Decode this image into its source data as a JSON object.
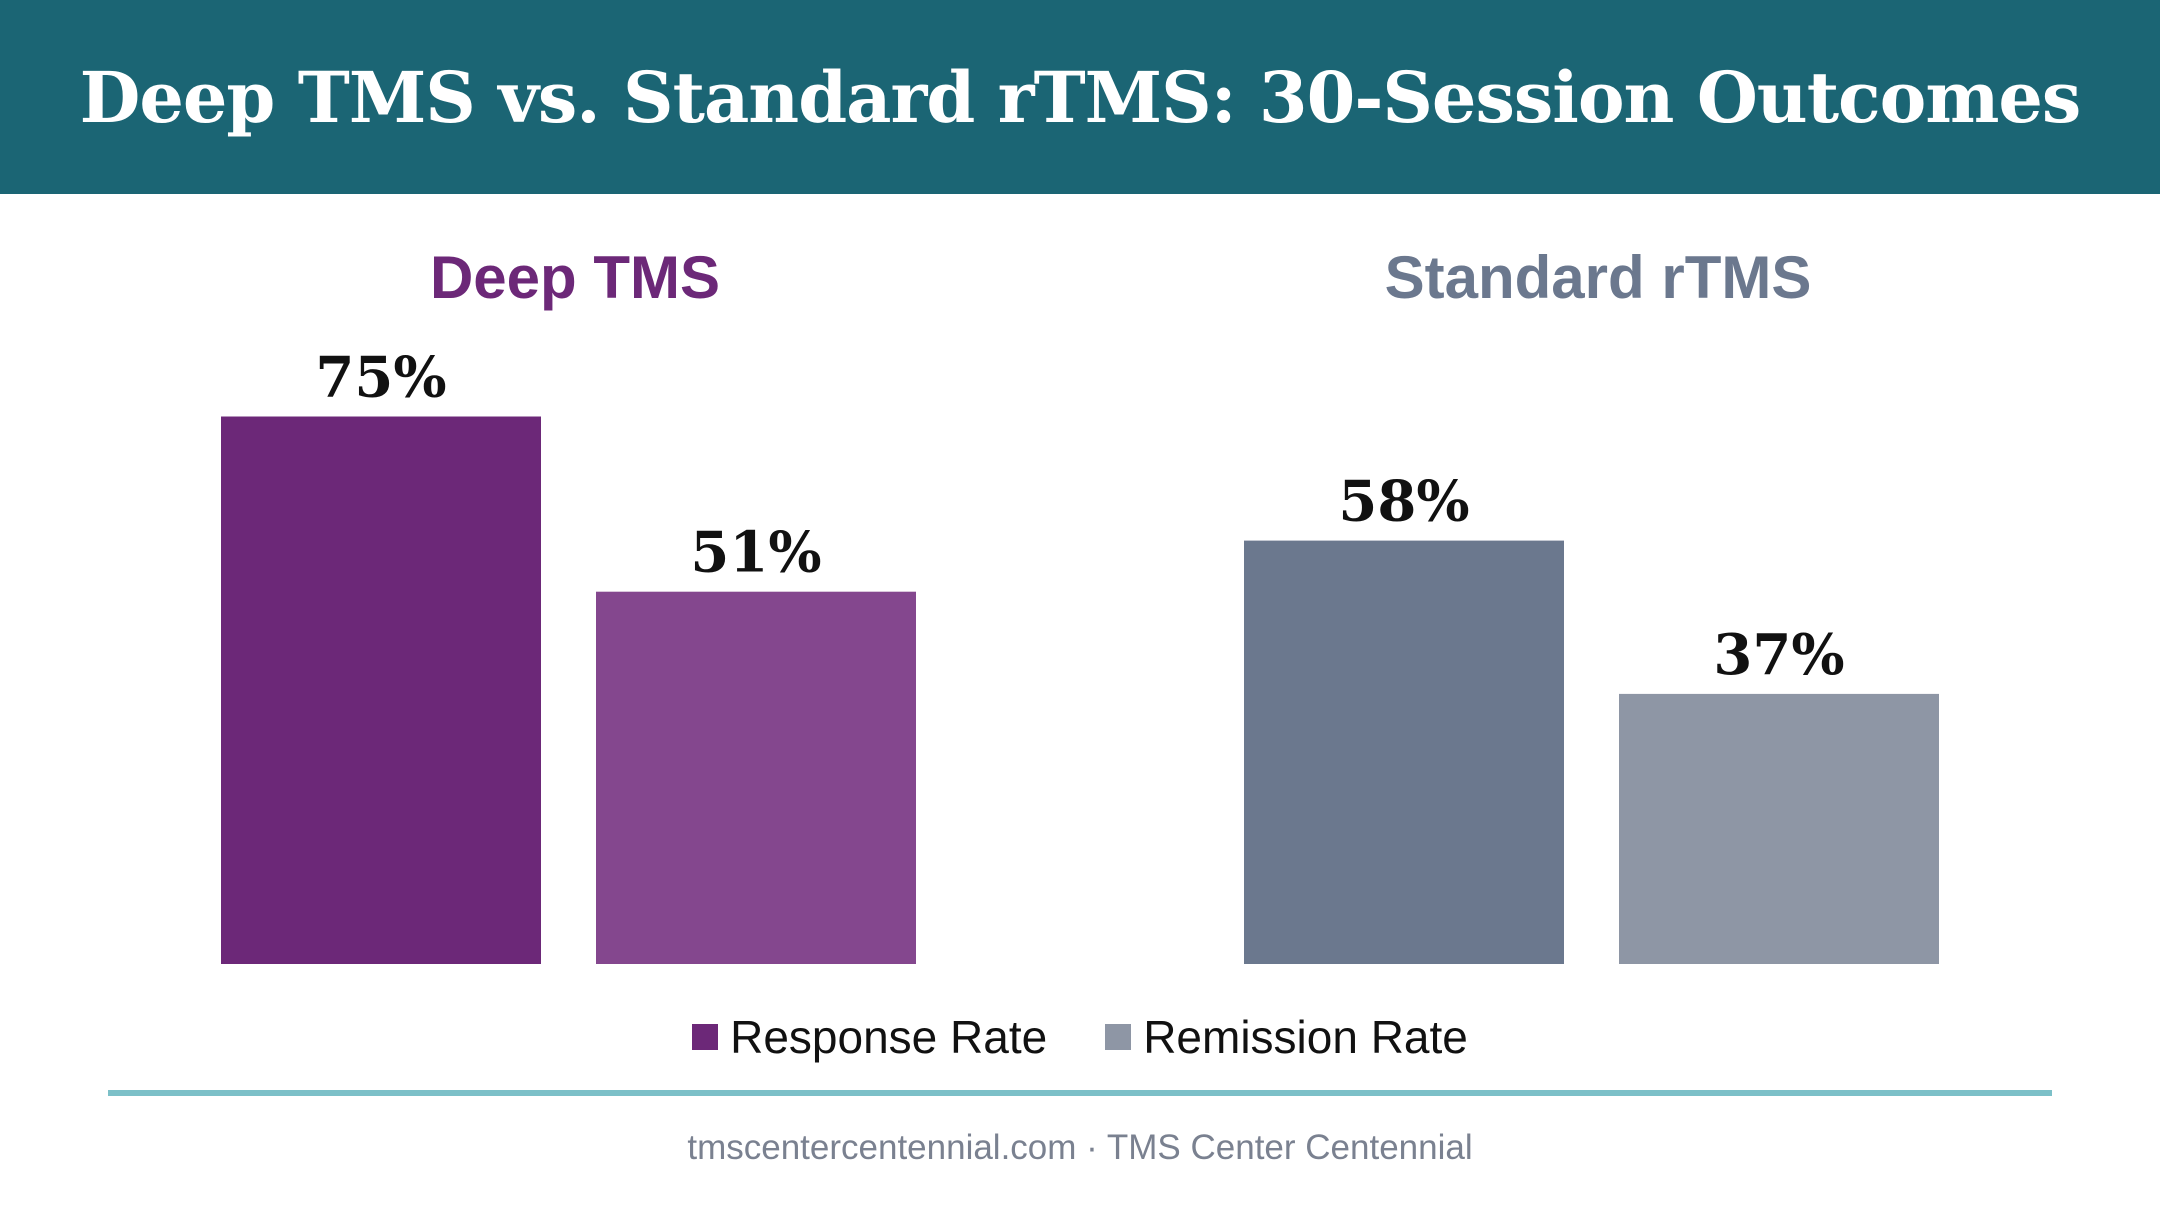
{
  "colors": {
    "header_bg": "#1b6574",
    "deep_response": "#6c2878",
    "deep_remission": "#84478e",
    "standard_response": "#6b788e",
    "standard_remission": "#8e96a5",
    "deep_title": "#6c2878",
    "standard_title": "#6b788e",
    "legend_response": "#6c2878",
    "legend_remission": "#8e96a5",
    "rule": "#7cc0c8",
    "footer_text": "#7a8190"
  },
  "footer": {
    "text": "tmscentercentennial.com · TMS Center Centennial"
  },
  "chart_data": {
    "type": "bar",
    "title": "Deep TMS vs. Standard rTMS: 30-Session Outcomes",
    "categories": [
      "Deep TMS",
      "Standard rTMS"
    ],
    "series": [
      {
        "name": "Response Rate",
        "values": [
          75,
          58
        ]
      },
      {
        "name": "Remission Rate",
        "values": [
          51,
          37
        ]
      }
    ],
    "value_labels": [
      [
        "75%",
        "58%"
      ],
      [
        "51%",
        "37%"
      ]
    ],
    "ylim": [
      0,
      100
    ],
    "grid": false,
    "legend": "bottom-center",
    "xlabel": "",
    "ylabel": ""
  }
}
